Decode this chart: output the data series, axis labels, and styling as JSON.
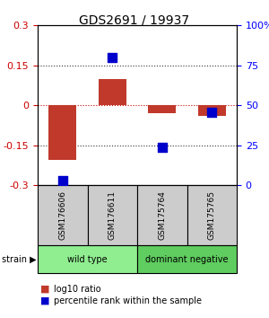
{
  "title": "GDS2691 / 19937",
  "samples": [
    "GSM176606",
    "GSM176611",
    "GSM175764",
    "GSM175765"
  ],
  "log10_ratio": [
    -0.205,
    0.1,
    -0.03,
    -0.04
  ],
  "percentile_rank": [
    3,
    80,
    24,
    46
  ],
  "ylim_left": [
    -0.3,
    0.3
  ],
  "yticks_left": [
    -0.3,
    -0.15,
    0,
    0.15,
    0.3
  ],
  "ytick_labels_right": [
    "0",
    "25",
    "50",
    "75",
    "100%"
  ],
  "groups": [
    {
      "label": "wild type",
      "samples": [
        0,
        1
      ],
      "color": "#90ee90"
    },
    {
      "label": "dominant negative",
      "samples": [
        2,
        3
      ],
      "color": "#5fcd5f"
    }
  ],
  "bar_color": "#c0392b",
  "scatter_color": "#0000cc",
  "bar_width": 0.55,
  "scatter_size": 50,
  "legend_red_label": "log10 ratio",
  "legend_blue_label": "percentile rank within the sample",
  "strain_label": "strain",
  "zero_line_color": "#cc0000",
  "dotted_line_color": "#333333"
}
